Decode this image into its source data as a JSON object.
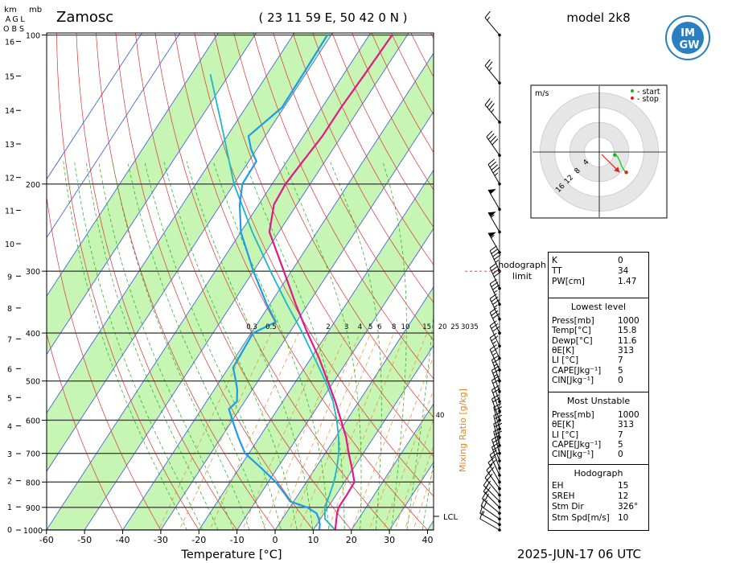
{
  "header": {
    "station": "Zamosc",
    "coords": "( 23 11 59 E, 50 42 0 N )",
    "model": "model 2k8",
    "datetime": "2025-JUN-17   06 UTC",
    "logo_text": "IMGW"
  },
  "left_axis": {
    "km_label": "km",
    "agl_label_lines": [
      "A",
      "G",
      "L"
    ],
    "obs_label": "O B S",
    "mb_label": "mb"
  },
  "hodograph_note": "hodograph\nlimit",
  "stability_panel": {
    "top": [
      {
        "k": "K",
        "v": "0"
      },
      {
        "k": "TT",
        "v": "34"
      },
      {
        "k": "PW[cm]",
        "v": "1.47"
      }
    ],
    "lowest_title": "Lowest level",
    "lowest": [
      {
        "k": "Press[mb]",
        "v": "1000"
      },
      {
        "k": "Temp[°C]",
        "v": "15.8"
      },
      {
        "k": "Dewp[°C]",
        "v": "11.6"
      },
      {
        "k": "θE[K]",
        "v": "313"
      },
      {
        "k": "LI [°C]",
        "v": "7"
      },
      {
        "k": "CAPE[Jkg⁻¹]",
        "v": "5"
      },
      {
        "k": "CIN[Jkg⁻¹]",
        "v": "0"
      }
    ],
    "unstable_title": "Most Unstable",
    "unstable": [
      {
        "k": "Press[mb]",
        "v": "1000"
      },
      {
        "k": "θE[K]",
        "v": "313"
      },
      {
        "k": "LI [°C]",
        "v": "7"
      },
      {
        "k": "CAPE[Jkg⁻¹]",
        "v": "5"
      },
      {
        "k": "CIN[Jkg⁻¹]",
        "v": "0"
      }
    ],
    "hodo_title": "Hodograph",
    "hodo": [
      {
        "k": "EH",
        "v": "15"
      },
      {
        "k": "SREH",
        "v": "12"
      },
      {
        "k": "Stm Dir",
        "v": "326°"
      },
      {
        "k": "Stm Spd[m/s]",
        "v": "10"
      }
    ]
  },
  "hodograph_inset": {
    "unit": "m/s",
    "legend_start": "- start",
    "legend_stop": "- stop",
    "ring_labels": [
      "4",
      "8",
      "12",
      "16"
    ]
  },
  "chart_data": {
    "type": "skew-t",
    "xlabel": "Temperature [°C]",
    "x_ticks": [
      -60,
      -50,
      -40,
      -30,
      -20,
      -10,
      0,
      10,
      20,
      30,
      40
    ],
    "pressure_ticks": [
      100,
      200,
      300,
      400,
      500,
      600,
      700,
      800,
      900,
      1000
    ],
    "km_ticks": [
      0,
      1,
      2,
      3,
      4,
      5,
      6,
      7,
      8,
      9,
      10,
      11,
      12,
      13,
      14,
      15,
      16
    ],
    "mixing_ratio_label": "Mixing Ratio [g/kg]",
    "mixing_ratio_ticks": [
      "0.3",
      "0.5",
      "2",
      "3",
      "4",
      "5",
      "6",
      "8",
      "10",
      "15",
      "20",
      "25",
      "30",
      "35",
      "40"
    ],
    "lcl_label": "LCL",
    "temperature": {
      "p": [
        1000,
        975,
        950,
        925,
        900,
        850,
        800,
        750,
        700,
        650,
        600,
        550,
        500,
        450,
        400,
        350,
        300,
        250,
        220,
        200,
        180,
        160,
        140,
        120,
        100
      ],
      "t": [
        15.8,
        15,
        14.2,
        13.4,
        12.8,
        12.8,
        12.6,
        9.6,
        6.2,
        2.8,
        -1.5,
        -6.2,
        -11.7,
        -17.8,
        -25.2,
        -33.2,
        -42,
        -52.5,
        -56,
        -56.5,
        -55.8,
        -55,
        -55,
        -54.5,
        -54
      ]
    },
    "dewpoint": {
      "p": [
        1000,
        975,
        950,
        925,
        900,
        875,
        850,
        800,
        750,
        700,
        650,
        600,
        570,
        550,
        520,
        500,
        470,
        450,
        400,
        380,
        350,
        300,
        250,
        220,
        200,
        180,
        170,
        160,
        140,
        120,
        100
      ],
      "td": [
        11.6,
        10.8,
        9.6,
        8,
        4.5,
        -1,
        -3.2,
        -8,
        -14.2,
        -21,
        -25.5,
        -30,
        -32.8,
        -32,
        -34,
        -35.8,
        -38.8,
        -39,
        -39.5,
        -35.4,
        -40.8,
        -50,
        -60,
        -65,
        -67.8,
        -68,
        -71.5,
        -74.4,
        -70.5,
        -70.7,
        -71
      ]
    },
    "parcel": {
      "p": [
        1000,
        950,
        900,
        850,
        800,
        750,
        700,
        650,
        600,
        550,
        500,
        450,
        400,
        350,
        300,
        250,
        200,
        150,
        120
      ],
      "t": [
        15.8,
        11.2,
        9.2,
        8.3,
        7.2,
        5.6,
        3.6,
        0.8,
        -2.6,
        -6.8,
        -12.3,
        -19,
        -26.5,
        -35.5,
        -45.5,
        -57,
        -70,
        -84,
        -95
      ]
    },
    "wind_barbs": {
      "p": [
        1000,
        975,
        950,
        925,
        900,
        875,
        850,
        825,
        800,
        775,
        750,
        725,
        700,
        675,
        650,
        625,
        600,
        575,
        550,
        525,
        500,
        475,
        450,
        425,
        400,
        375,
        350,
        325,
        300,
        275,
        250,
        225,
        200,
        175,
        150,
        125,
        100
      ],
      "direction": [
        300,
        300,
        305,
        310,
        315,
        315,
        320,
        325,
        330,
        335,
        340,
        340,
        345,
        345,
        345,
        345,
        340,
        340,
        340,
        340,
        340,
        335,
        335,
        335,
        335,
        335,
        335,
        335,
        335,
        330,
        330,
        330,
        330,
        325,
        320,
        320,
        320
      ],
      "speed_kt": [
        10,
        15,
        20,
        20,
        20,
        20,
        20,
        20,
        20,
        20,
        20,
        20,
        20,
        20,
        20,
        20,
        20,
        20,
        20,
        25,
        25,
        25,
        25,
        30,
        30,
        35,
        35,
        40,
        45,
        55,
        55,
        50,
        45,
        40,
        35,
        25,
        15
      ]
    },
    "hodograph": {
      "u": [
        4.2,
        5,
        5.3,
        5.6,
        5.8,
        6,
        6.4,
        6.8,
        7.3
      ],
      "v": [
        -0.8,
        -1.3,
        -2,
        -2.6,
        -3.2,
        -3.8,
        -4.4,
        -5,
        -5.5
      ],
      "storm_motion": {
        "u": 5.5,
        "v": -5.5
      }
    }
  }
}
